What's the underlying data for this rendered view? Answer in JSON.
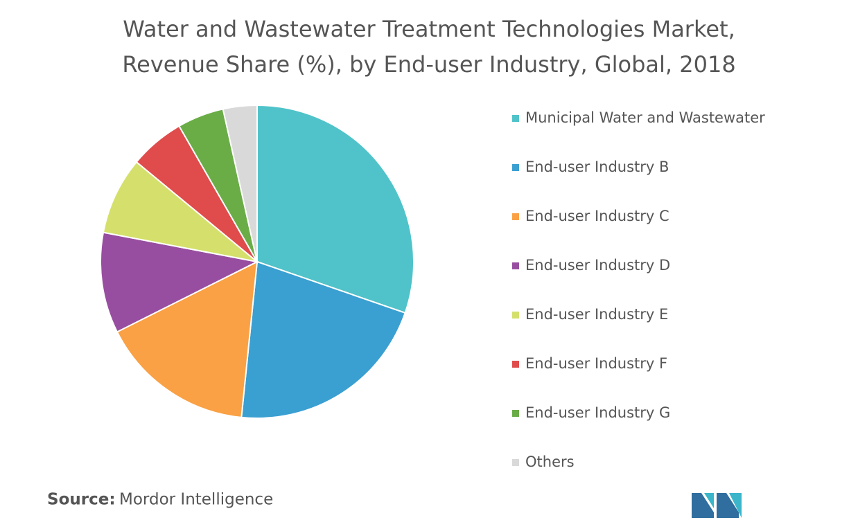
{
  "chart_data": {
    "type": "pie",
    "title": [
      "Water and Wastewater Treatment Technologies Market,",
      "Revenue Share (%), by End-user Industry, Global, 2018"
    ],
    "categories": [
      "Municipal Water and Wastewater",
      "End-user Industry B",
      "End-user Industry C",
      "End-user Industry D",
      "End-user Industry E",
      "End-user Industry F",
      "End-user Industry G",
      "Others"
    ],
    "values": [
      30.3,
      21.3,
      16,
      10.4,
      8,
      5.7,
      4.8,
      3.5
    ],
    "colors": [
      "#4fc3c9",
      "#3a9fd1",
      "#f9a144",
      "#984ea0",
      "#d4e06b",
      "#e04b4b",
      "#6aad47",
      "#d9d9d9"
    ],
    "legend": "right",
    "source_label": "Source:",
    "source": "Mordor Intelligence"
  }
}
